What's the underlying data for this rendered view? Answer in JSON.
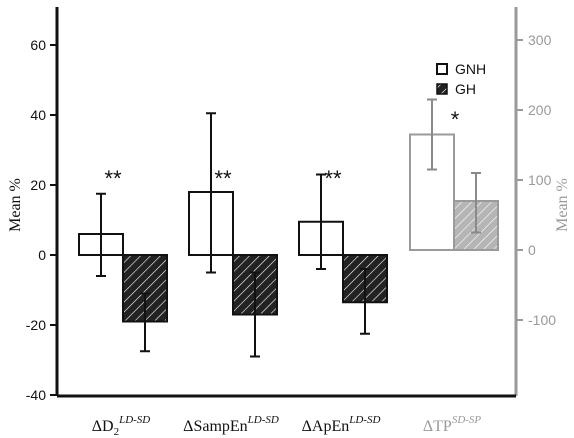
{
  "chart_data": {
    "type": "bar",
    "title": "",
    "left_axis": {
      "label": "Mean %",
      "ylim": [
        -40,
        70
      ],
      "ticks": [
        -40,
        -20,
        0,
        20,
        40,
        60
      ]
    },
    "right_axis": {
      "label": "Mean %",
      "ylim": [
        -200,
        350
      ],
      "ticks": [
        -100,
        0,
        100,
        200,
        300
      ],
      "color": "#9a9a9a"
    },
    "categories": [
      {
        "base": "ΔD",
        "sub": "2",
        "sup": "LD-SD",
        "axis": "left",
        "color": "#111111"
      },
      {
        "base": "ΔSampEn",
        "sub": "",
        "sup": "LD-SD",
        "axis": "left",
        "color": "#111111"
      },
      {
        "base": "ΔApEn",
        "sub": "",
        "sup": "LD-SD",
        "axis": "left",
        "color": "#111111"
      },
      {
        "base": "ΔTP",
        "sub": "",
        "sup": "SD-SP",
        "axis": "right",
        "color": "#9a9a9a"
      }
    ],
    "series": [
      {
        "name": "GNH",
        "fill": "open",
        "values": [
          6,
          18,
          9.5,
          165
        ],
        "err_low": [
          -6,
          -5,
          -4,
          115
        ],
        "err_high": [
          17.5,
          40.5,
          23,
          215
        ]
      },
      {
        "name": "GH",
        "fill": "hatched",
        "values": [
          -19,
          -17,
          -13.5,
          70
        ],
        "err_low": [
          -27.5,
          -29,
          -22.5,
          25
        ],
        "err_high": [
          -11,
          -5,
          -4,
          110
        ]
      }
    ],
    "significance": [
      "**",
      "**",
      "**",
      "*"
    ],
    "legend": {
      "position": "top-right",
      "entries": [
        "GNH",
        "GH"
      ]
    },
    "grid": false
  }
}
